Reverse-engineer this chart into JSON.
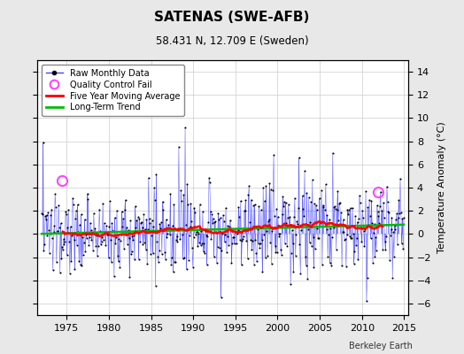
{
  "title": "SATENAS (SWE-AFB)",
  "subtitle": "58.431 N, 12.709 E (Sweden)",
  "ylabel": "Temperature Anomaly (°C)",
  "watermark": "Berkeley Earth",
  "xlim": [
    1971.5,
    2015.5
  ],
  "ylim": [
    -7,
    15
  ],
  "yticks": [
    -6,
    -4,
    -2,
    0,
    2,
    4,
    6,
    8,
    10,
    12,
    14
  ],
  "xticks": [
    1975,
    1980,
    1985,
    1990,
    1995,
    2000,
    2005,
    2010,
    2015
  ],
  "line_color": "#4444FF",
  "bar_fill_color": "#8888FF",
  "marker_color": "#000000",
  "ma_color": "#FF0000",
  "trend_color": "#00BB00",
  "qc_color": "#FF44FF",
  "background_color": "#E8E8E8",
  "plot_bg_color": "#FFFFFF",
  "grid_color": "#CCCCCC",
  "start_year": 1972,
  "end_year": 2014,
  "seed": 137,
  "qc_times": [
    1974.4,
    2011.9
  ],
  "qc_values": [
    4.6,
    3.6
  ]
}
